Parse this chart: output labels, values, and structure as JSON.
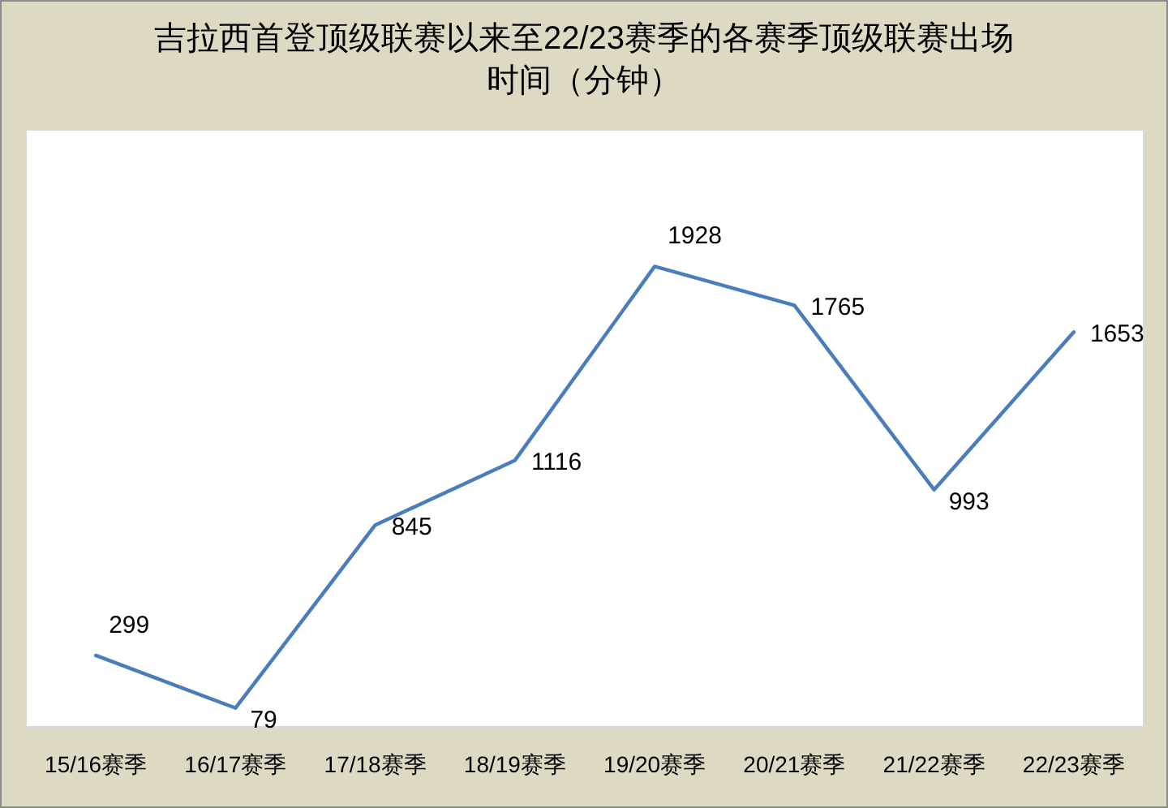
{
  "chart_data": {
    "type": "line",
    "title": "吉拉西首登顶级联赛以来至22/23赛季的各赛季顶级联赛出场时间（分钟）",
    "categories": [
      "15/16赛季",
      "16/17赛季",
      "17/18赛季",
      "18/19赛季",
      "19/20赛季",
      "20/21赛季",
      "21/22赛季",
      "22/23赛季"
    ],
    "series": [
      {
        "color": "#4a7ebb",
        "values": [
          299,
          79,
          845,
          1116,
          1928,
          1765,
          993,
          1653
        ]
      }
    ],
    "ylim": [
      0,
      2500
    ],
    "tick_labels": "x",
    "data_labels": true,
    "line_style": "solid"
  }
}
